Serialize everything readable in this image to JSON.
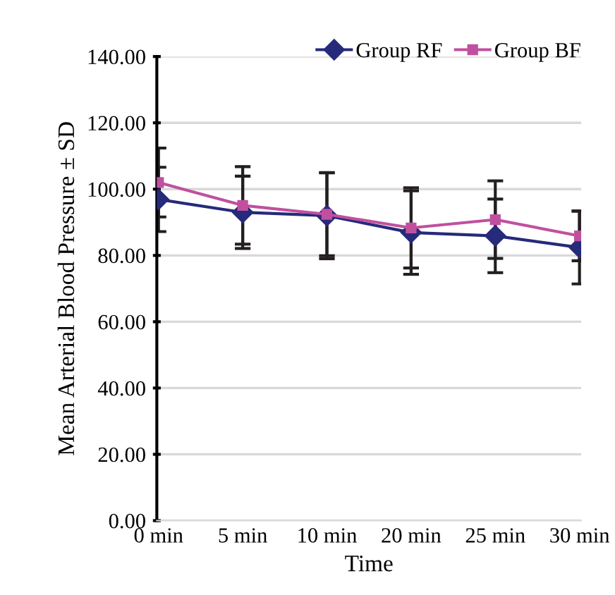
{
  "chart_data": {
    "type": "line",
    "xlabel": "Time",
    "ylabel": "Mean Arterial Blood Pressure ± SD",
    "categories": [
      "0 min",
      "5 min",
      "10 min",
      "20 min",
      "25 min",
      "30 min"
    ],
    "series": [
      {
        "name": "Group RF",
        "color": "#262a7a",
        "marker": "diamond",
        "values": [
          96.9,
          93.0,
          92.0,
          86.9,
          85.9,
          82.4
        ],
        "errors": [
          9.7,
          10.9,
          13.0,
          12.6,
          11.1,
          11.0
        ]
      },
      {
        "name": "Group BF",
        "color": "#c0509f",
        "marker": "square",
        "values": [
          102.0,
          95.1,
          92.4,
          88.3,
          90.8,
          85.9
        ],
        "errors": [
          10.4,
          11.7,
          12.5,
          12.1,
          11.7,
          7.5
        ]
      }
    ],
    "ylim": [
      0,
      140
    ],
    "yticks": [
      {
        "value": 0,
        "label": "0.00"
      },
      {
        "value": 20,
        "label": "20.00"
      },
      {
        "value": 40,
        "label": "40.00"
      },
      {
        "value": 60,
        "label": "60.00"
      },
      {
        "value": 80,
        "label": "80.00"
      },
      {
        "value": 100,
        "label": "100.00"
      },
      {
        "value": 120,
        "label": "120.00"
      },
      {
        "value": 140,
        "label": "140.00"
      }
    ],
    "grid": "y",
    "legend": "top right",
    "line_style": "solid"
  }
}
